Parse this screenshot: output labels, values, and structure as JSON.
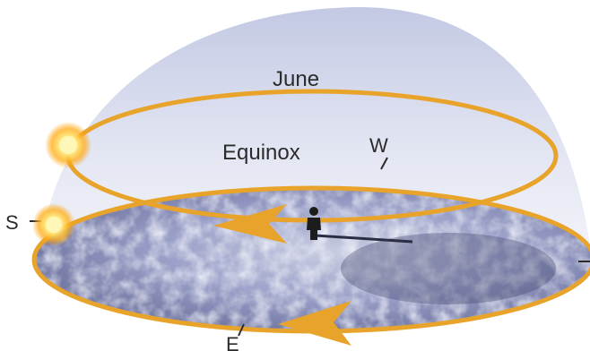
{
  "labels": {
    "june": "June",
    "equinox": "Equinox",
    "west": "W",
    "south": "S",
    "east": "E"
  },
  "colors": {
    "orbit": "#e8a32a",
    "sky_top": "#c9cee6",
    "sky_bottom": "#eef0f8",
    "ground": "#8d93c0",
    "sun_core": "#fff6b0",
    "sun_glow": "#ffb020"
  },
  "icons": {
    "sun": "sun-icon",
    "observer": "person-icon"
  }
}
